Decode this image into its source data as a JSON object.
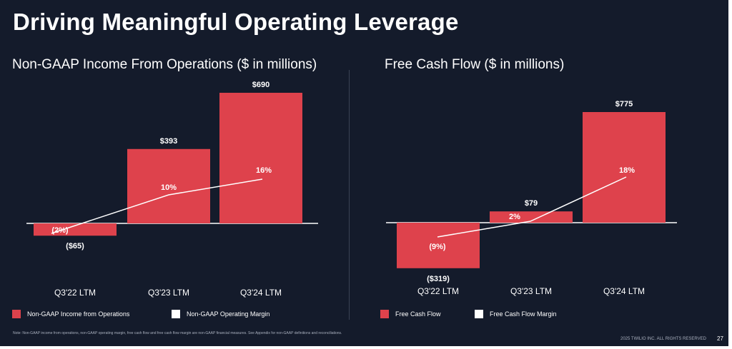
{
  "slide": {
    "title": "Driving Meaningful Operating Leverage",
    "note": "Note: Non-GAAP income from operations, non-GAAP operating margin, free cash flow and free cash flow margin are non-GAAP financial measures. See Appendix for non-GAAP definitions and reconciliations.",
    "footer": "2025 TWILIO INC. ALL RIGHTS RESERVED",
    "page_number": "27",
    "colors": {
      "background": "#141b2b",
      "bar": "#de424c",
      "line": "#ffffff"
    }
  },
  "chart_data": [
    {
      "type": "bar",
      "title": "Non-GAAP Income From Operations ($ in millions)",
      "categories": [
        "Q3'22 LTM",
        "Q3'23 LTM",
        "Q3'24 LTM"
      ],
      "series": [
        {
          "name": "Non-GAAP Income from Operations",
          "kind": "bar",
          "values": [
            -65,
            393,
            690
          ],
          "labels": [
            "($65)",
            "$393",
            "$690"
          ],
          "color": "#de424c"
        },
        {
          "name": "Non-GAAP Operating Margin",
          "kind": "line",
          "values": [
            -2,
            10,
            16
          ],
          "labels": [
            "(2%)",
            "10%",
            "16%"
          ],
          "color": "#ffffff"
        }
      ],
      "legend_position": "bottom-left",
      "grid": false
    },
    {
      "type": "bar",
      "title": "Free Cash Flow ($ in millions)",
      "categories": [
        "Q3'22 LTM",
        "Q3'23 LTM",
        "Q3'24 LTM"
      ],
      "series": [
        {
          "name": "Free Cash Flow",
          "kind": "bar",
          "values": [
            -319,
            79,
            775
          ],
          "labels": [
            "($319)",
            "$79",
            "$775"
          ],
          "color": "#de424c"
        },
        {
          "name": "Free Cash Flow Margin",
          "kind": "line",
          "values": [
            -9,
            2,
            18
          ],
          "labels": [
            "(9%)",
            "2%",
            "18%"
          ],
          "color": "#ffffff"
        }
      ],
      "legend_position": "bottom-left",
      "grid": false
    }
  ]
}
